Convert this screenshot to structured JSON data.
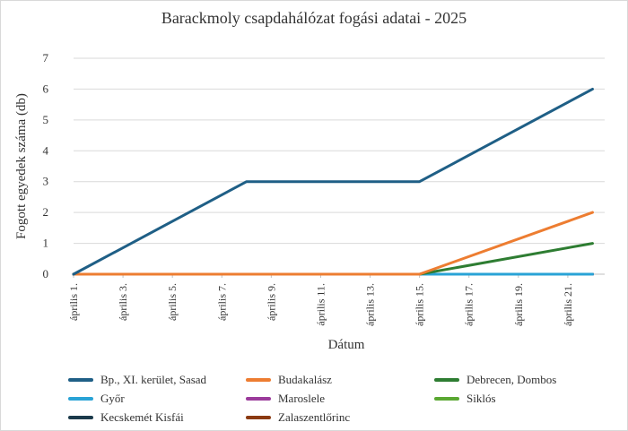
{
  "chart_data": {
    "type": "line",
    "title": "Barackmoly csapdahálózat fogási adatai - 2025",
    "xlabel": "Dátum",
    "ylabel": "Fogott egyedek száma (db)",
    "ylim": [
      0,
      7
    ],
    "yticks": [
      0,
      1,
      2,
      3,
      4,
      5,
      6,
      7
    ],
    "grid": "horizontal",
    "legend_position": "bottom",
    "x": [
      "április 1.",
      "április 8.",
      "április 15.",
      "április 22."
    ],
    "xtick_labels": [
      "április 1.",
      "április 3.",
      "április 5.",
      "április 7.",
      "április 9.",
      "április 11.",
      "április 13.",
      "április 15.",
      "április 17.",
      "április 19.",
      "április 21."
    ],
    "series": [
      {
        "name": "Bp., XI. kerület, Sasad",
        "color": "#1f5f86",
        "values": [
          0,
          3,
          3,
          6
        ]
      },
      {
        "name": "Budakalász",
        "color": "#ed7d31",
        "values": [
          0,
          0,
          0,
          2
        ]
      },
      {
        "name": "Debrecen, Dombos",
        "color": "#2e7d32",
        "values": [
          0,
          0,
          0,
          1
        ]
      },
      {
        "name": "Győr",
        "color": "#29a3d6",
        "values": [
          0,
          0,
          0,
          0
        ]
      },
      {
        "name": "Maroslele",
        "color": "#9b3b9b",
        "values": [
          0,
          0,
          0,
          0
        ]
      },
      {
        "name": "Siklós",
        "color": "#5aa832",
        "values": [
          0,
          0,
          0,
          0
        ]
      },
      {
        "name": "Kecskemét Kisfái",
        "color": "#1b3a4b",
        "values": [
          0,
          0,
          0,
          0
        ]
      },
      {
        "name": "Zalaszentlőrinc",
        "color": "#8b3a12",
        "values": [
          0,
          0,
          0,
          0
        ]
      }
    ]
  }
}
